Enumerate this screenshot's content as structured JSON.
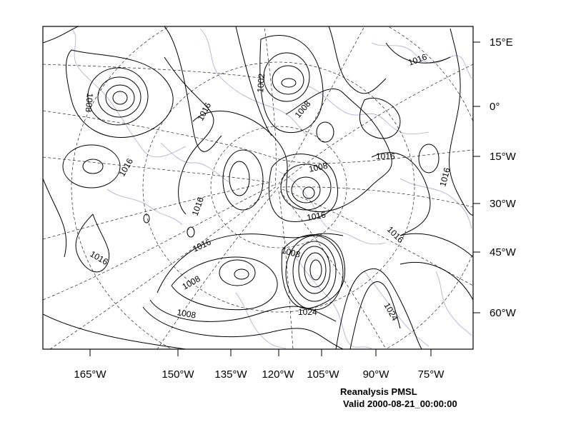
{
  "figure": {
    "title": "Reanalysis PMSL",
    "valid_time": "Valid 2000-08-21_00:00:00"
  },
  "axes": {
    "right_labels": [
      "15°E",
      "0°",
      "15°W",
      "30°W",
      "45°W",
      "60°W"
    ],
    "bottom_labels": [
      "165°W",
      "150°W",
      "135°W",
      "120°W",
      "105°W",
      "90°W",
      "75°W"
    ]
  },
  "contour_labels": [
    "1008",
    "1002",
    "1008",
    "1016",
    "1016",
    "1016",
    "1016",
    "1008",
    "1016",
    "1016",
    "1016",
    "1016",
    "1016",
    "1008",
    "1008",
    "1016",
    "1008",
    "1024",
    "1024"
  ],
  "colors": {
    "contour": "#000000",
    "coastline": "#b3a6d6",
    "graticule": "#000000"
  }
}
